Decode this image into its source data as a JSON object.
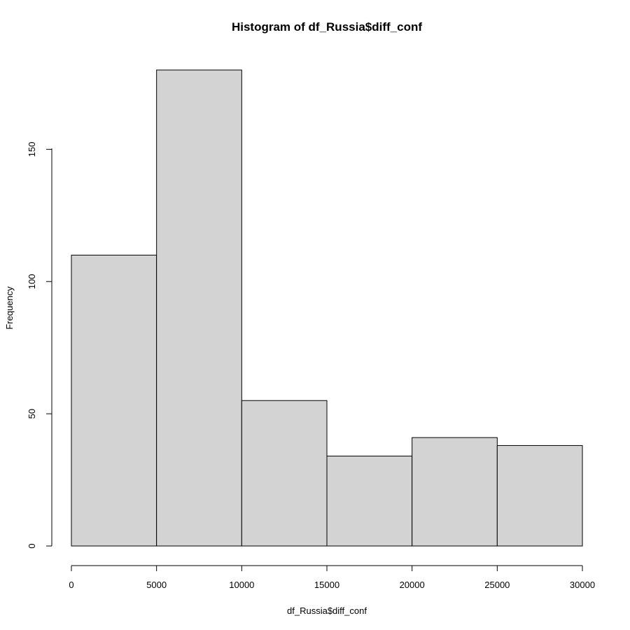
{
  "chart_data": {
    "type": "bar",
    "title": "Histogram of df_Russia$diff_conf",
    "xlabel": "df_Russia$diff_conf",
    "ylabel": "Frequency",
    "bin_edges": [
      0,
      5000,
      10000,
      15000,
      20000,
      25000,
      30000
    ],
    "values": [
      110,
      180,
      55,
      34,
      41,
      38
    ],
    "xlim": [
      0,
      30000
    ],
    "ylim": [
      0,
      180
    ],
    "x_ticks": [
      0,
      5000,
      10000,
      15000,
      20000,
      25000,
      30000
    ],
    "x_tick_labels": [
      "0",
      "5000",
      "10000",
      "15000",
      "20000",
      "25000",
      "30000"
    ],
    "y_ticks": [
      0,
      50,
      100,
      150
    ],
    "y_tick_labels": [
      "0",
      "50",
      "100",
      "150"
    ],
    "bar_fill": "#d3d3d3",
    "grid": false,
    "legend": "none"
  }
}
